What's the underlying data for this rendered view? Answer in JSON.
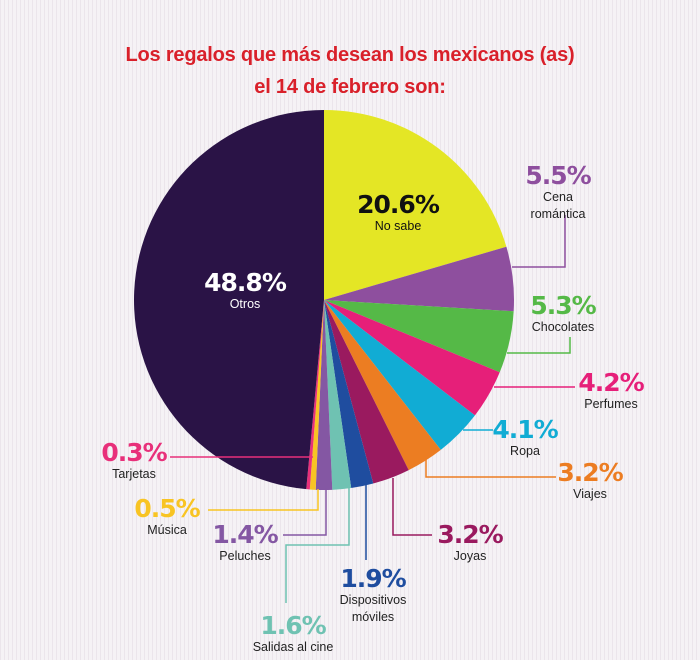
{
  "chart_data": {
    "type": "pie",
    "title": "Los regalos que más desean los mexicanos (as) el 14 de febrero son:",
    "title_lines": [
      "Los regalos que más desean los mexicanos (as)",
      "el 14 de febrero son:"
    ],
    "start": "top, clockwise",
    "slices": [
      {
        "label": "No sabe",
        "value": 20.6,
        "text": "20.6%",
        "color": "#e4e625"
      },
      {
        "label": "Cena romántica",
        "label_lines": [
          "Cena",
          "romántica"
        ],
        "value": 5.5,
        "text": "5.5%",
        "color": "#8e4f9e"
      },
      {
        "label": "Chocolates",
        "value": 5.3,
        "text": "5.3%",
        "color": "#55b947"
      },
      {
        "label": "Perfumes",
        "value": 4.2,
        "text": "4.2%",
        "color": "#e61f79"
      },
      {
        "label": "Ropa",
        "value": 4.1,
        "text": "4.1%",
        "color": "#11acd4"
      },
      {
        "label": "Viajes",
        "value": 3.2,
        "text": "3.2%",
        "color": "#ec7d22"
      },
      {
        "label": "Joyas",
        "value": 3.2,
        "text": "3.2%",
        "color": "#9a1a5f"
      },
      {
        "label": "Dispositivos móviles",
        "label_lines": [
          "Dispositivos",
          "móviles"
        ],
        "value": 1.9,
        "text": "1.9%",
        "color": "#1f4d9f"
      },
      {
        "label": "Salidas al cine",
        "value": 1.6,
        "text": "1.6%",
        "color": "#6fc2b2"
      },
      {
        "label": "Peluches",
        "value": 1.4,
        "text": "1.4%",
        "color": "#8457a3"
      },
      {
        "label": "Música",
        "value": 0.5,
        "text": "0.5%",
        "color": "#f8c423"
      },
      {
        "label": "Tarjetas",
        "value": 0.3,
        "text": "0.3%",
        "color": "#e8307a"
      },
      {
        "label": "Otros",
        "value": 48.8,
        "text": "48.8%",
        "color": "#2a1346"
      }
    ]
  }
}
